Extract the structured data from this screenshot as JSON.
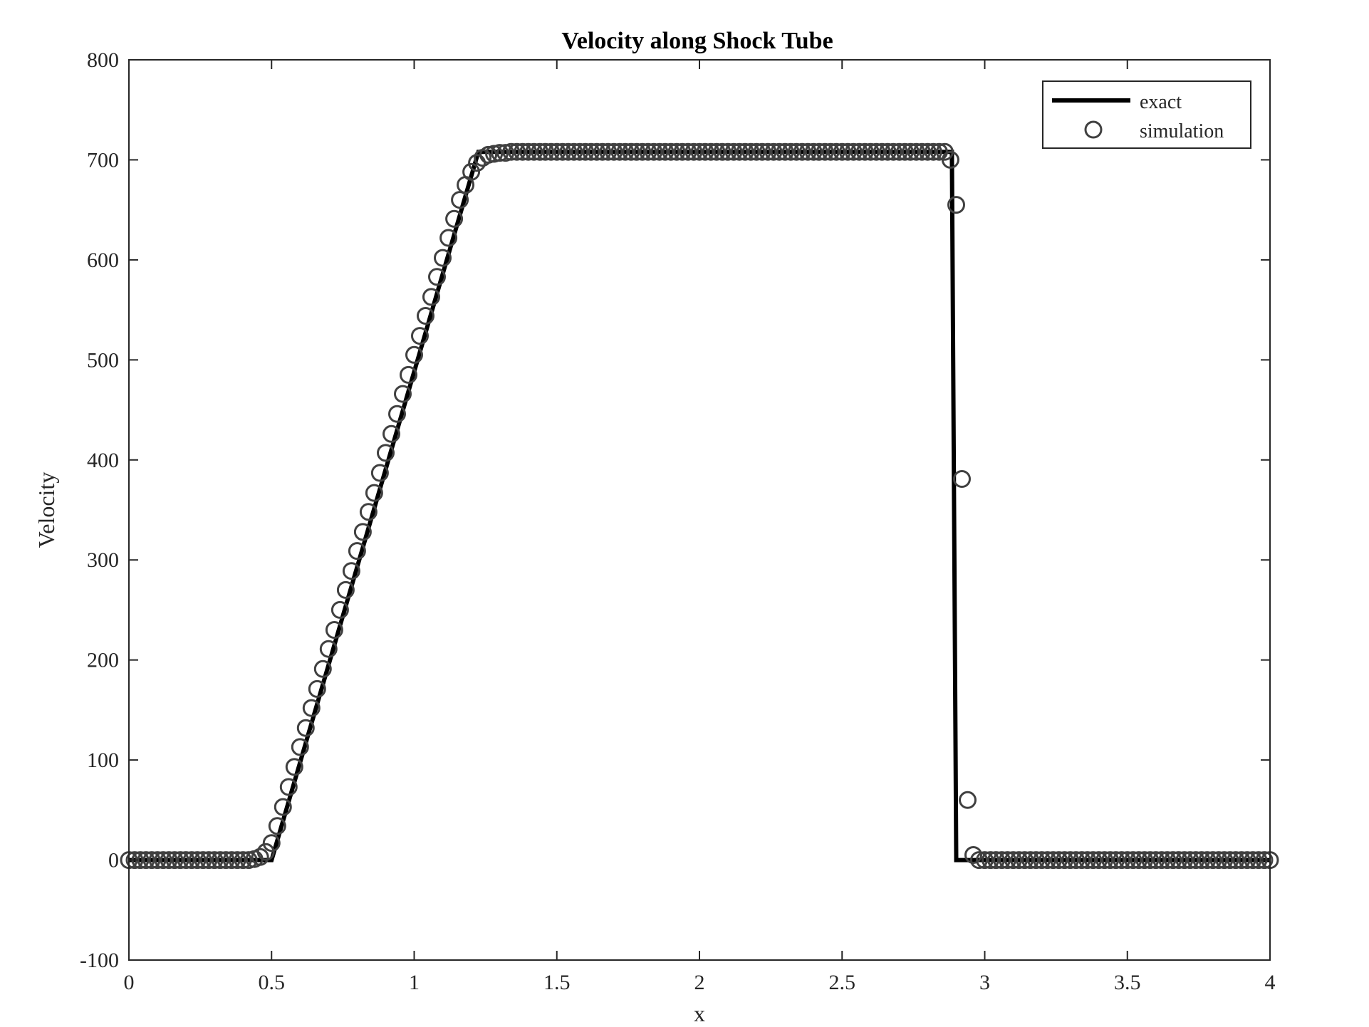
{
  "chart_data": {
    "type": "line",
    "title": "Velocity along Shock Tube",
    "xlabel": "x",
    "ylabel": "Velocity",
    "xlim": [
      0,
      4
    ],
    "ylim": [
      -100,
      800
    ],
    "xticks": [
      0,
      0.5,
      1,
      1.5,
      2,
      2.5,
      3,
      3.5,
      4
    ],
    "xtick_labels": [
      "0",
      "0.5",
      "1",
      "1.5",
      "2",
      "2.5",
      "3",
      "3.5",
      "4"
    ],
    "yticks": [
      -100,
      0,
      100,
      200,
      300,
      400,
      500,
      600,
      700,
      800
    ],
    "ytick_labels": [
      "-100",
      "0",
      "100",
      "200",
      "300",
      "400",
      "500",
      "600",
      "700",
      "800"
    ],
    "grid": false,
    "legend_position": "top-right",
    "colors": {
      "exact": "#000000",
      "simulation": "#404040"
    },
    "series": [
      {
        "name": "exact",
        "style": "solid-line",
        "x": [
          0,
          0.5,
          1.225,
          1.26,
          2.885,
          2.9,
          4
        ],
        "y": [
          0,
          0,
          708,
          708,
          708,
          0,
          0
        ]
      },
      {
        "name": "simulation",
        "style": "circle-markers",
        "x": [
          0.0,
          0.02,
          0.04,
          0.06,
          0.08,
          0.1,
          0.12,
          0.14,
          0.16,
          0.18,
          0.2,
          0.22,
          0.24,
          0.26,
          0.28,
          0.3,
          0.32,
          0.34,
          0.36,
          0.38,
          0.4,
          0.42,
          0.44,
          0.46,
          0.48,
          0.5,
          0.52,
          0.54,
          0.56,
          0.58,
          0.6,
          0.62,
          0.64,
          0.66,
          0.68,
          0.7,
          0.72,
          0.74,
          0.76,
          0.78,
          0.8,
          0.82,
          0.84,
          0.86,
          0.88,
          0.9,
          0.92,
          0.94,
          0.96,
          0.98,
          1.0,
          1.02,
          1.04,
          1.06,
          1.08,
          1.1,
          1.12,
          1.14,
          1.16,
          1.18,
          1.2,
          1.22,
          1.24,
          1.26,
          1.28,
          1.3,
          1.32,
          1.34,
          1.36,
          1.38,
          1.4,
          1.42,
          1.44,
          1.46,
          1.48,
          1.5,
          1.52,
          1.54,
          1.56,
          1.58,
          1.6,
          1.62,
          1.64,
          1.66,
          1.68,
          1.7,
          1.72,
          1.74,
          1.76,
          1.78,
          1.8,
          1.82,
          1.84,
          1.86,
          1.88,
          1.9,
          1.92,
          1.94,
          1.96,
          1.98,
          2.0,
          2.02,
          2.04,
          2.06,
          2.08,
          2.1,
          2.12,
          2.14,
          2.16,
          2.18,
          2.2,
          2.22,
          2.24,
          2.26,
          2.28,
          2.3,
          2.32,
          2.34,
          2.36,
          2.38,
          2.4,
          2.42,
          2.44,
          2.46,
          2.48,
          2.5,
          2.52,
          2.54,
          2.56,
          2.58,
          2.6,
          2.62,
          2.64,
          2.66,
          2.68,
          2.7,
          2.72,
          2.74,
          2.76,
          2.78,
          2.8,
          2.82,
          2.84,
          2.86,
          2.88,
          2.9,
          2.92,
          2.94,
          2.96,
          2.98,
          3.0,
          3.02,
          3.04,
          3.06,
          3.08,
          3.1,
          3.12,
          3.14,
          3.16,
          3.18,
          3.2,
          3.22,
          3.24,
          3.26,
          3.28,
          3.3,
          3.32,
          3.34,
          3.36,
          3.38,
          3.4,
          3.42,
          3.44,
          3.46,
          3.48,
          3.5,
          3.52,
          3.54,
          3.56,
          3.58,
          3.6,
          3.62,
          3.64,
          3.66,
          3.68,
          3.7,
          3.72,
          3.74,
          3.76,
          3.78,
          3.8,
          3.82,
          3.84,
          3.86,
          3.88,
          3.9,
          3.92,
          3.94,
          3.96,
          3.98,
          4.0
        ],
        "y": [
          0,
          0,
          0,
          0,
          0,
          0,
          0,
          0,
          0,
          0,
          0,
          0,
          0,
          0,
          0,
          0,
          0,
          0,
          0,
          0,
          0,
          0,
          1,
          3,
          8,
          17,
          34,
          53,
          73,
          93,
          113,
          132,
          152,
          171,
          191,
          211,
          230,
          250,
          270,
          289,
          309,
          328,
          348,
          367,
          387,
          407,
          426,
          446,
          466,
          485,
          505,
          524,
          544,
          563,
          583,
          602,
          622,
          641,
          660,
          675,
          688,
          697,
          702,
          705,
          706,
          707,
          707,
          708,
          708,
          708,
          708,
          708,
          708,
          708,
          708,
          708,
          708,
          708,
          708,
          708,
          708,
          708,
          708,
          708,
          708,
          708,
          708,
          708,
          708,
          708,
          708,
          708,
          708,
          708,
          708,
          708,
          708,
          708,
          708,
          708,
          708,
          708,
          708,
          708,
          708,
          708,
          708,
          708,
          708,
          708,
          708,
          708,
          708,
          708,
          708,
          708,
          708,
          708,
          708,
          708,
          708,
          708,
          708,
          708,
          708,
          708,
          708,
          708,
          708,
          708,
          708,
          708,
          708,
          708,
          708,
          708,
          708,
          708,
          708,
          708,
          708,
          708,
          708,
          708,
          700,
          655,
          381,
          60,
          5,
          0,
          0,
          0,
          0,
          0,
          0,
          0,
          0,
          0,
          0,
          0,
          0,
          0,
          0,
          0,
          0,
          0,
          0,
          0,
          0,
          0,
          0,
          0,
          0,
          0,
          0,
          0,
          0,
          0,
          0,
          0,
          0,
          0,
          0,
          0,
          0,
          0,
          0,
          0,
          0,
          0,
          0,
          0,
          0,
          0,
          0,
          0,
          0,
          0,
          0,
          0,
          0
        ]
      }
    ]
  }
}
